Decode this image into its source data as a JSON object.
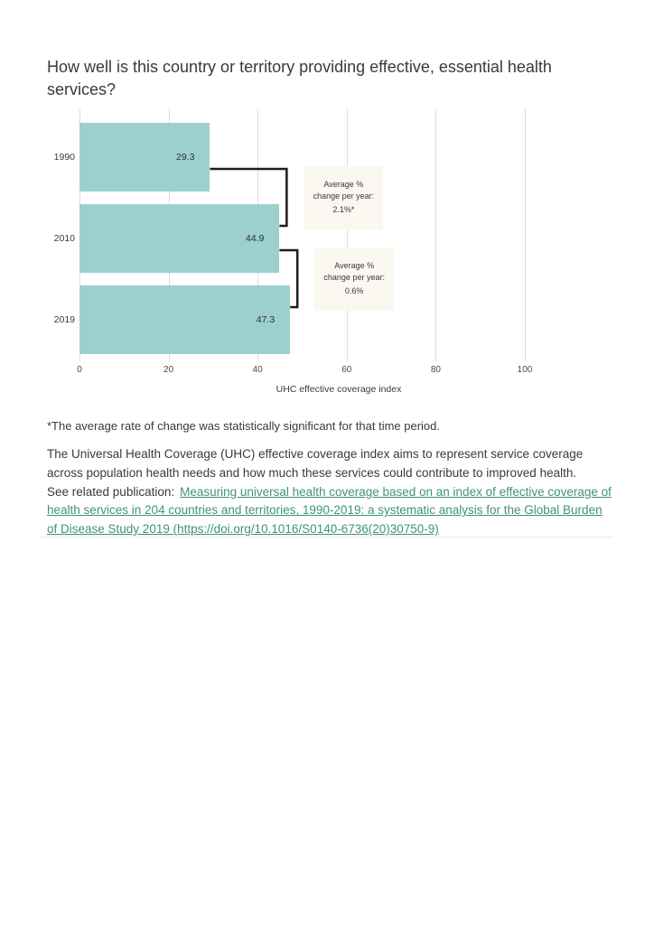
{
  "page": {
    "title": "How well is this country or territory providing effective, essential health services?",
    "footnote": "*The average rate of change was statistically significant for that time period.",
    "description": "The Universal Health Coverage (UHC) effective coverage index aims to represent service coverage across population health needs and how much these services could contribute to improved health.",
    "see_related_label": "See related publication:",
    "publication_link_text": "Measuring universal health coverage based on an index of effective coverage of health services in 204 countries and territories, 1990-2019: a systematic analysis for the Global Burden of Disease Study 2019 (https://doi.org/10.1016/S0140-6736(20)30750-9)"
  },
  "colors": {
    "bar": "#9bd0cf",
    "grid": "#dcdcdc",
    "connector": "#1c1c1c",
    "annotation_bg": "#fbf7f1",
    "link": "#40917f"
  },
  "chart_data": {
    "type": "bar",
    "orientation": "horizontal",
    "categories": [
      "1990",
      "2010",
      "2019"
    ],
    "values": [
      29.3,
      44.9,
      47.3
    ],
    "value_labels": [
      "29.3",
      "44.9",
      "47.3"
    ],
    "xlabel": "UHC effective coverage index",
    "xlim": [
      0,
      100
    ],
    "xticks": [
      0,
      20,
      40,
      60,
      80,
      100
    ],
    "grid": "vertical-only",
    "legend": "none",
    "annotations": [
      {
        "between": [
          "1990",
          "2010"
        ],
        "line1": "Average %",
        "line2": "change per year:",
        "value": "2.1%*"
      },
      {
        "between": [
          "2010",
          "2019"
        ],
        "line1": "Average %",
        "line2": "change per year:",
        "value": "0.6%"
      }
    ]
  }
}
